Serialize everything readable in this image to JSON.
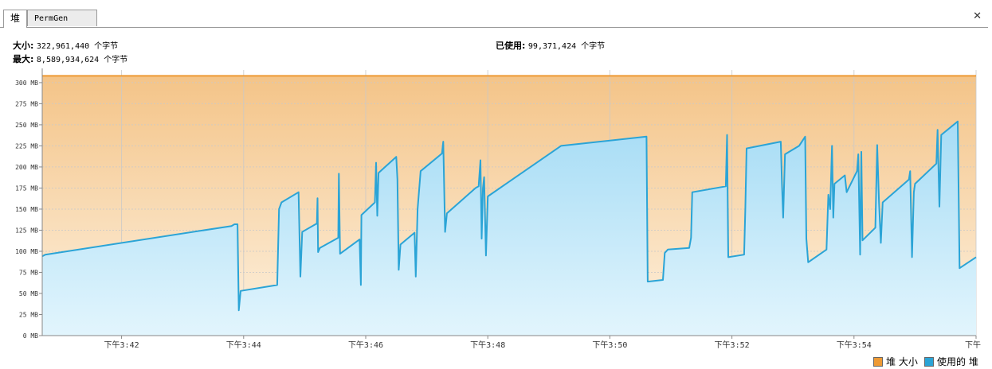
{
  "tabs": [
    {
      "label": "堆",
      "active": true
    },
    {
      "label": "PermGen",
      "active": false
    }
  ],
  "close_glyph": "✕",
  "info": {
    "size_label": "大小:",
    "size_value": "322,961,440 个字节",
    "max_label": "最大:",
    "max_value": "8,589,934,624 个字节",
    "used_label": "已使用:",
    "used_value": "99,371,424 个字节"
  },
  "legend": {
    "size_label": "堆 大小",
    "used_label": "使用的 堆",
    "size_color": "#ee9a35",
    "used_color": "#2ba4d6"
  },
  "chart_data": {
    "type": "area",
    "title": "",
    "xlabel": "",
    "ylabel": "",
    "ylim": [
      0,
      315
    ],
    "y_unit": "MB",
    "y_ticks": [
      "0 MB",
      "25 MB",
      "50 MB",
      "75 MB",
      "100 MB",
      "125 MB",
      "150 MB",
      "175 MB",
      "200 MB",
      "225 MB",
      "250 MB",
      "275 MB",
      "300 MB"
    ],
    "x_ticks": [
      "下午3:42",
      "下午3:44",
      "下午3:46",
      "下午3:48",
      "下午3:50",
      "下午3:52",
      "下午3:54",
      "下午"
    ],
    "x_tick_minutes": [
      2.0,
      4.0,
      6.0,
      8.0,
      10.0,
      12.0,
      14.0,
      16.0
    ],
    "xlim_minutes": [
      0.7,
      16.0
    ],
    "grid": true,
    "series": [
      {
        "name": "堆 大小",
        "color": "#ee9a35",
        "points": [
          [
            0.7,
            308
          ],
          [
            16.0,
            308
          ]
        ]
      },
      {
        "name": "使用的 堆",
        "color": "#2ba4d6",
        "points": [
          [
            0.7,
            94
          ],
          [
            0.75,
            96
          ],
          [
            3.8,
            130
          ],
          [
            3.85,
            132
          ],
          [
            3.9,
            132
          ],
          [
            3.92,
            30
          ],
          [
            3.95,
            53
          ],
          [
            4.55,
            60
          ],
          [
            4.58,
            150
          ],
          [
            4.62,
            158
          ],
          [
            4.9,
            170
          ],
          [
            4.93,
            70
          ],
          [
            4.96,
            123
          ],
          [
            5.2,
            133
          ],
          [
            5.21,
            163
          ],
          [
            5.22,
            99
          ],
          [
            5.25,
            104
          ],
          [
            5.55,
            116
          ],
          [
            5.56,
            192
          ],
          [
            5.58,
            97
          ],
          [
            5.9,
            114
          ],
          [
            5.92,
            60
          ],
          [
            5.93,
            143
          ],
          [
            6.15,
            158
          ],
          [
            6.17,
            205
          ],
          [
            6.19,
            142
          ],
          [
            6.21,
            193
          ],
          [
            6.5,
            212
          ],
          [
            6.52,
            185
          ],
          [
            6.54,
            78
          ],
          [
            6.57,
            108
          ],
          [
            6.8,
            122
          ],
          [
            6.82,
            70
          ],
          [
            6.85,
            150
          ],
          [
            6.9,
            195
          ],
          [
            7.25,
            216
          ],
          [
            7.27,
            230
          ],
          [
            7.3,
            123
          ],
          [
            7.33,
            145
          ],
          [
            7.8,
            175
          ],
          [
            7.85,
            177
          ],
          [
            7.88,
            208
          ],
          [
            7.9,
            115
          ],
          [
            7.92,
            175
          ],
          [
            7.94,
            188
          ],
          [
            7.97,
            95
          ],
          [
            8.0,
            165
          ],
          [
            8.3,
            180
          ],
          [
            9.2,
            225
          ],
          [
            10.6,
            236
          ],
          [
            10.62,
            64
          ],
          [
            10.87,
            66
          ],
          [
            10.9,
            98
          ],
          [
            10.95,
            102
          ],
          [
            11.3,
            104
          ],
          [
            11.33,
            116
          ],
          [
            11.35,
            170
          ],
          [
            11.9,
            177
          ],
          [
            11.92,
            238
          ],
          [
            11.94,
            93
          ],
          [
            12.2,
            96
          ],
          [
            12.22,
            150
          ],
          [
            12.24,
            222
          ],
          [
            12.8,
            230
          ],
          [
            12.82,
            180
          ],
          [
            12.84,
            140
          ],
          [
            12.87,
            215
          ],
          [
            13.1,
            225
          ],
          [
            13.2,
            236
          ],
          [
            13.22,
            115
          ],
          [
            13.25,
            87
          ],
          [
            13.55,
            102
          ],
          [
            13.58,
            167
          ],
          [
            13.61,
            150
          ],
          [
            13.64,
            225
          ],
          [
            13.66,
            140
          ],
          [
            13.68,
            180
          ],
          [
            13.85,
            190
          ],
          [
            13.88,
            170
          ],
          [
            14.05,
            195
          ],
          [
            14.07,
            215
          ],
          [
            14.1,
            96
          ],
          [
            14.12,
            218
          ],
          [
            14.14,
            113
          ],
          [
            14.35,
            128
          ],
          [
            14.38,
            226
          ],
          [
            14.41,
            158
          ],
          [
            14.44,
            110
          ],
          [
            14.47,
            158
          ],
          [
            14.9,
            185
          ],
          [
            14.92,
            195
          ],
          [
            14.95,
            93
          ],
          [
            14.98,
            170
          ],
          [
            15.0,
            180
          ],
          [
            15.35,
            204
          ],
          [
            15.37,
            244
          ],
          [
            15.4,
            153
          ],
          [
            15.43,
            238
          ],
          [
            15.7,
            254
          ],
          [
            15.73,
            80
          ],
          [
            16.0,
            93
          ]
        ]
      }
    ]
  }
}
